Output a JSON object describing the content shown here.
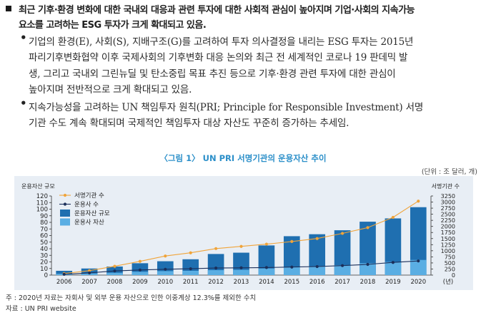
{
  "intro": {
    "bold_line1": "최근 기후·환경 변화에 대한 국내외 대응과 관련 투자에 대한 사회적 관심이 높아지며 기업·사회의 지속가능",
    "bold_line2": "요소를 고려하는 ESG 투자가 크게 확대되고 있음.",
    "bullet": "•",
    "b1_line1": "기업의 환경(E), 사회(S), 지배구조(G)를 고려하여 투자 의사결정을 내리는 ESG 투자는 2015년",
    "b1_line2": "파리기후변화협약 이후 국제사회의 기후변화 대응 논의와 최근 전 세계적인 코로나 19 판데믹 발",
    "b1_line3": "생, 그리고 국내외 그린뉴딜 및 탄소중립 목표 추진 등으로 기후·환경 관련 투자에 대한 관심이",
    "b1_line4": "높아지며 전반적으로 크게 확대되고 있음.",
    "b2_line1": "지속가능성을 고려하는 UN 책임투자 원칙(PRI; Principle for Responsible Investment) 서명",
    "b2_line2": "기관 수도 계속 확대되며 국제적인 책임투자 대상 자산도 꾸준히 증가하는 추세임."
  },
  "figure": {
    "title": "〈그림 1〉 UN PRI 서명기관의 운용자산 추이",
    "unit": "(단위 : 조 달러, 개)",
    "note": "주 : 2020년 자료는 자회사 및 외부 운용 자산으로 인한 이중계상 12.3%를 제외한 수치",
    "source": "자료 : UN PRI website"
  },
  "chart_data": {
    "type": "bar",
    "title": "〈그림 1〉 UN PRI 서명기관의 운용자산 추이",
    "categories": [
      "2006",
      "2007",
      "2008",
      "2009",
      "2010",
      "2011",
      "2012",
      "2013",
      "2014",
      "2015",
      "2016",
      "2017",
      "2018",
      "2019",
      "2020"
    ],
    "x_suffix": "(년)",
    "y_left": {
      "label": "운용자산 규모",
      "ticks": [
        "0",
        "10",
        "20",
        "30",
        "40",
        "50",
        "60",
        "70",
        "80",
        "90",
        "100",
        "110",
        "120"
      ],
      "ylim": [
        0,
        120
      ]
    },
    "y_right": {
      "label": "서명기관 수",
      "ticks": [
        "0",
        "250",
        "500",
        "750",
        "1000",
        "1250",
        "1500",
        "1750",
        "2000",
        "2250",
        "2500",
        "2750",
        "3000",
        "3250"
      ],
      "ylim": [
        0,
        3250
      ]
    },
    "series": [
      {
        "name": "운용자산 규모",
        "type": "bar",
        "axis": "left",
        "color": "#1f6fb0",
        "values": [
          6.5,
          10,
          13,
          18,
          21,
          24,
          32,
          34,
          45,
          59,
          62,
          68,
          81,
          86,
          103
        ]
      },
      {
        "name": "운용사 자산",
        "type": "bar",
        "axis": "left",
        "color": "#5aaee3",
        "values": [
          2,
          2.5,
          3.5,
          5,
          6,
          6.5,
          7.5,
          8,
          10,
          12,
          13,
          15,
          18,
          20,
          23
        ]
      },
      {
        "name": "서명기관 수",
        "type": "line",
        "axis": "right",
        "color": "#f0a43a",
        "values": [
          63,
          181,
          362,
          564,
          784,
          915,
          1089,
          1179,
          1272,
          1380,
          1501,
          1714,
          1951,
          2372,
          3038
        ]
      },
      {
        "name": "운용사 수",
        "type": "line",
        "axis": "right",
        "color": "#1b2f5a",
        "values": [
          32,
          90,
          170,
          210,
          240,
          260,
          290,
          300,
          310,
          330,
          350,
          390,
          440,
          520,
          580
        ]
      }
    ],
    "legend": [
      {
        "name": "서명기관 수",
        "kind": "line",
        "color": "#f0a43a"
      },
      {
        "name": "운용사 수",
        "kind": "line",
        "color": "#1b2f5a"
      },
      {
        "name": "운용자산 규모",
        "kind": "bar",
        "color": "#1f6fb0"
      },
      {
        "name": "운용사 자산",
        "kind": "bar",
        "color": "#5aaee3"
      }
    ],
    "legend_position": "top-left",
    "grid": false
  }
}
